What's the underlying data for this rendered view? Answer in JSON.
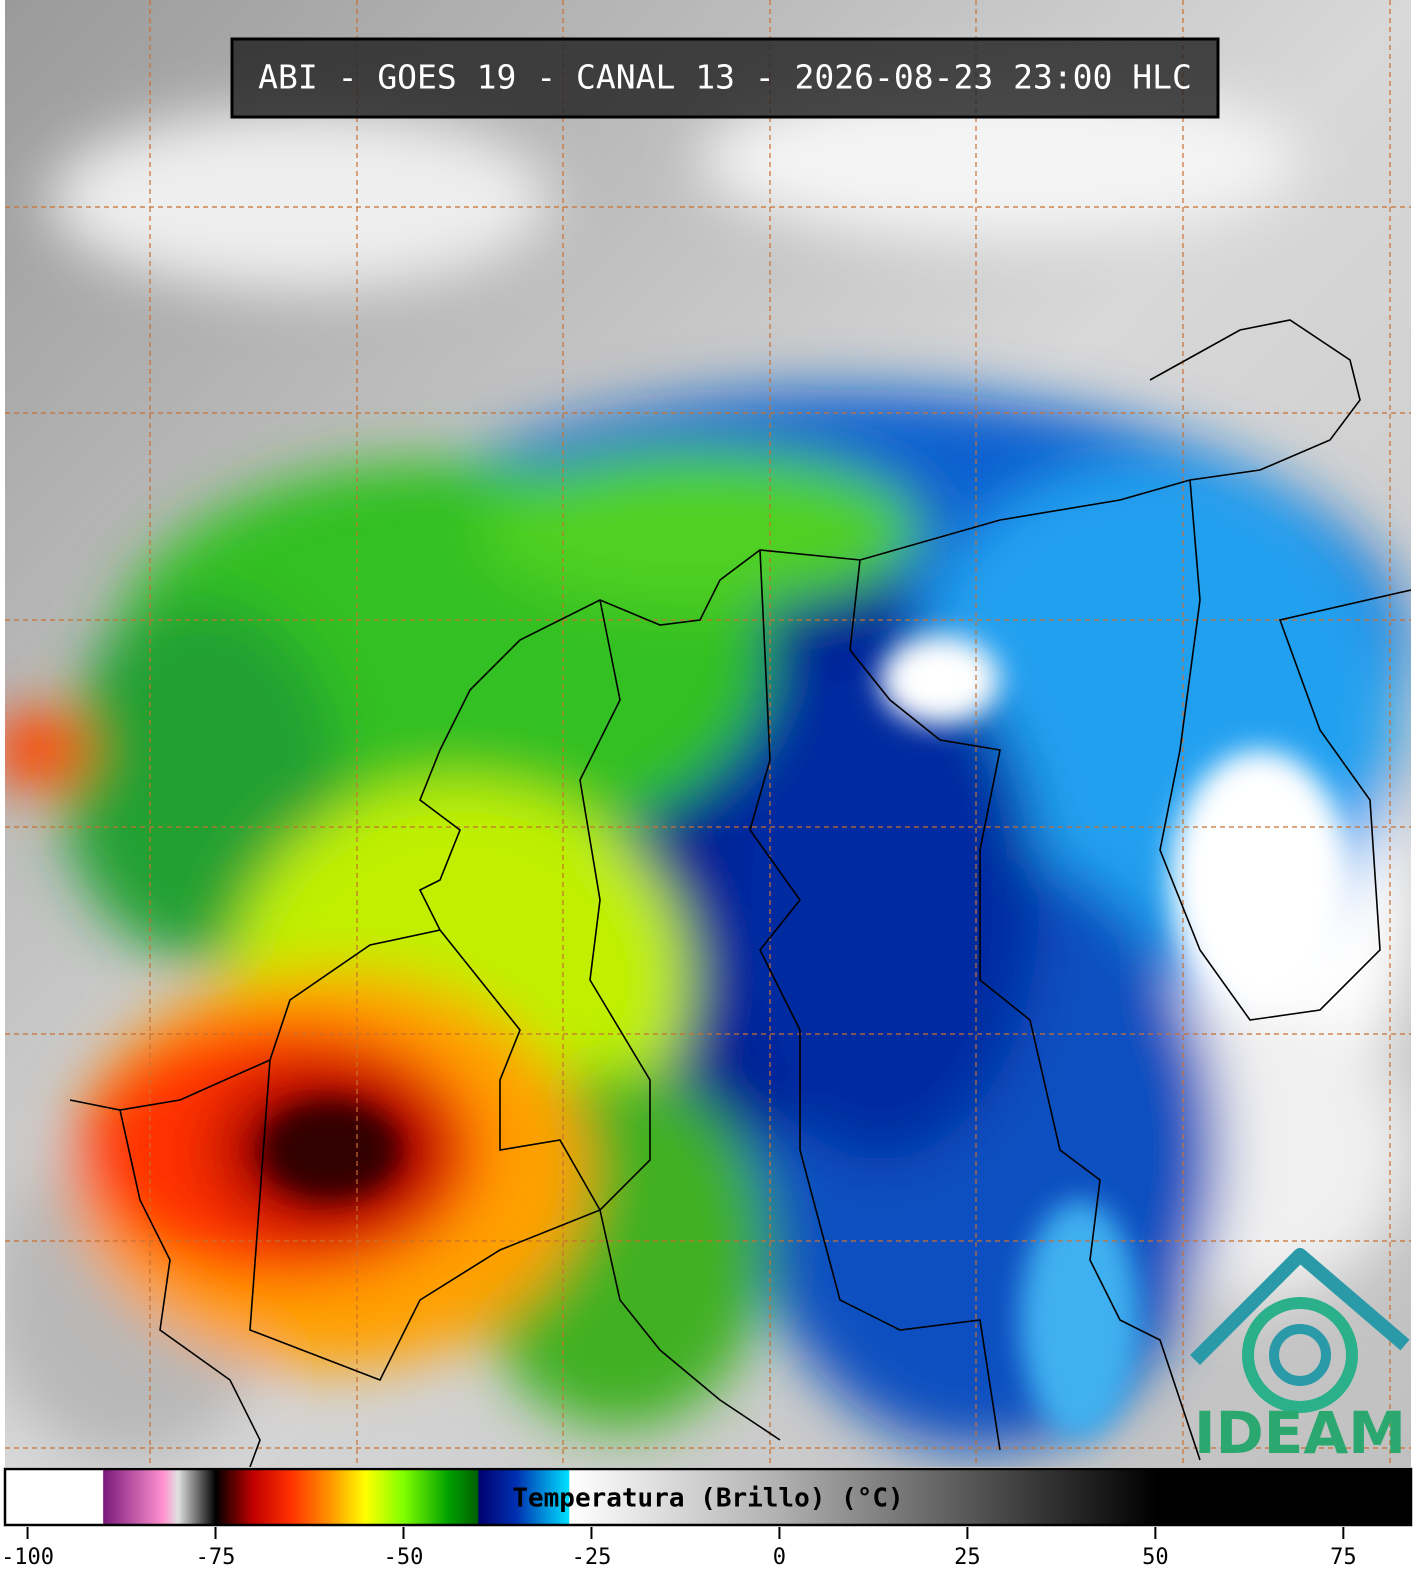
{
  "title": "ABI - GOES 19 - CANAL 13 - 2026-08-23 23:00 HLC",
  "logo": "IDEAM",
  "colorbar": {
    "label": "Temperatura (Brillo) (°C)",
    "xlim": [
      -103,
      84
    ],
    "xticks": [
      -100,
      -75,
      -50,
      -25,
      0,
      25,
      50,
      75
    ],
    "colormap": [
      {
        "value": -103,
        "color": "#ffffff"
      },
      {
        "value": -90,
        "color": "#ffffff"
      },
      {
        "value": -89.9,
        "color": "#7a1a7a"
      },
      {
        "value": -82,
        "color": "#ff90d0"
      },
      {
        "value": -80,
        "color": "#e0e0e0"
      },
      {
        "value": -76,
        "color": "#303030"
      },
      {
        "value": -75,
        "color": "#000000"
      },
      {
        "value": -70,
        "color": "#c00000"
      },
      {
        "value": -65,
        "color": "#ff3000"
      },
      {
        "value": -60,
        "color": "#ff9000"
      },
      {
        "value": -55,
        "color": "#ffff00"
      },
      {
        "value": -50,
        "color": "#80ff00"
      },
      {
        "value": -44,
        "color": "#00a000"
      },
      {
        "value": -40.1,
        "color": "#006000"
      },
      {
        "value": -40,
        "color": "#000070"
      },
      {
        "value": -35,
        "color": "#0030b0"
      },
      {
        "value": -28,
        "color": "#00e0ff"
      },
      {
        "value": -27.9,
        "color": "#ffffff"
      },
      {
        "value": 0,
        "color": "#b0b0b0"
      },
      {
        "value": 50,
        "color": "#000000"
      },
      {
        "value": 84,
        "color": "#000000"
      }
    ]
  }
}
